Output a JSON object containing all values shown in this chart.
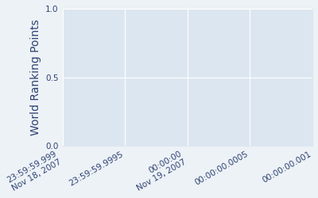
{
  "title": "",
  "ylabel": "World Ranking Points",
  "ylim": [
    0,
    1
  ],
  "yticks": [
    0,
    0.5,
    1.0
  ],
  "axes_facecolor": "#dce6f0",
  "figure_facecolor": "#edf2f7",
  "grid_color": "#ffffff",
  "text_color": "#2e4272",
  "x_values": [
    0,
    0.25,
    0.5,
    0.75,
    1.0
  ],
  "x_labels": [
    "23:59:59.999\nNov 18, 2007",
    "23:59:59.9995",
    "00:00:00\nNov 19, 2007",
    "00:00:00.0005",
    "00:00:00.001"
  ],
  "tick_label_fontsize": 7.5,
  "ylabel_fontsize": 10
}
